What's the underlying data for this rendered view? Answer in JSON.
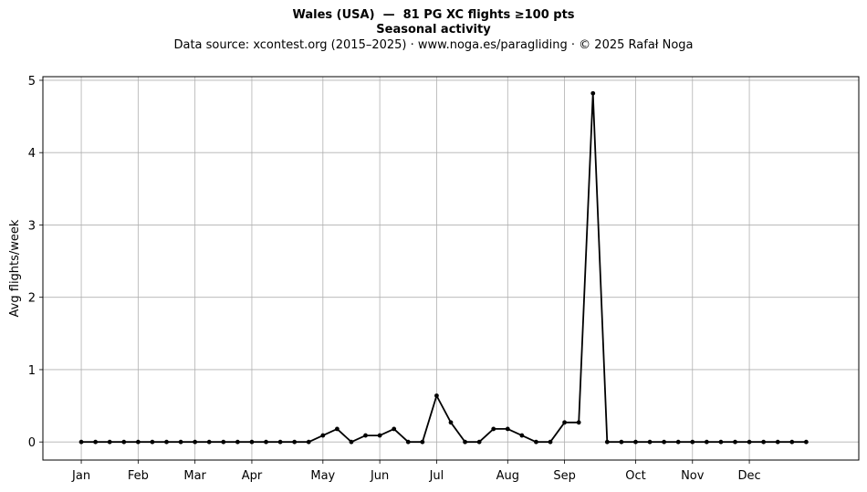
{
  "chart_data": {
    "type": "line",
    "title": "Wales (USA)  —  81 PG XC flights ≥100 pts",
    "subtitle": "Seasonal activity",
    "source": "Data source: xcontest.org (2015–2025)  ·  www.noga.es/paragliding  ·  © 2025 Rafał Noga",
    "xlabel": "",
    "ylabel": "Avg flights/week",
    "xlim": [
      -2.7,
      54.7
    ],
    "ylim": [
      -0.25,
      5.05
    ],
    "grid": true,
    "x_ticks": [
      {
        "label": "Jan",
        "week": 0
      },
      {
        "label": "Feb",
        "week": 4
      },
      {
        "label": "Mar",
        "week": 8
      },
      {
        "label": "Apr",
        "week": 12
      },
      {
        "label": "May",
        "week": 17
      },
      {
        "label": "Jun",
        "week": 21
      },
      {
        "label": "Jul",
        "week": 25
      },
      {
        "label": "Aug",
        "week": 30
      },
      {
        "label": "Sep",
        "week": 34
      },
      {
        "label": "Oct",
        "week": 39
      },
      {
        "label": "Nov",
        "week": 43
      },
      {
        "label": "Dec",
        "week": 47
      }
    ],
    "y_ticks": [
      0,
      1,
      2,
      3,
      4,
      5
    ],
    "series": [
      {
        "color": "#000000",
        "x": [
          0,
          1,
          2,
          3,
          4,
          5,
          6,
          7,
          8,
          9,
          10,
          11,
          12,
          13,
          14,
          15,
          16,
          17,
          18,
          19,
          20,
          21,
          22,
          23,
          24,
          25,
          26,
          27,
          28,
          29,
          30,
          31,
          32,
          33,
          34,
          35,
          36,
          37,
          38,
          39,
          40,
          41,
          42,
          43,
          44,
          45,
          46,
          47,
          48,
          49,
          50,
          51
        ],
        "values": [
          0,
          0,
          0,
          0,
          0,
          0,
          0,
          0,
          0,
          0,
          0,
          0,
          0,
          0,
          0,
          0,
          0,
          0.09,
          0.18,
          0,
          0.09,
          0.09,
          0.18,
          0,
          0,
          0.64,
          0.27,
          0,
          0,
          0.18,
          0.18,
          0.09,
          0,
          0,
          0.27,
          0.27,
          4.82,
          0,
          0,
          0,
          0,
          0,
          0,
          0,
          0,
          0,
          0,
          0,
          0,
          0,
          0,
          0
        ]
      }
    ]
  }
}
